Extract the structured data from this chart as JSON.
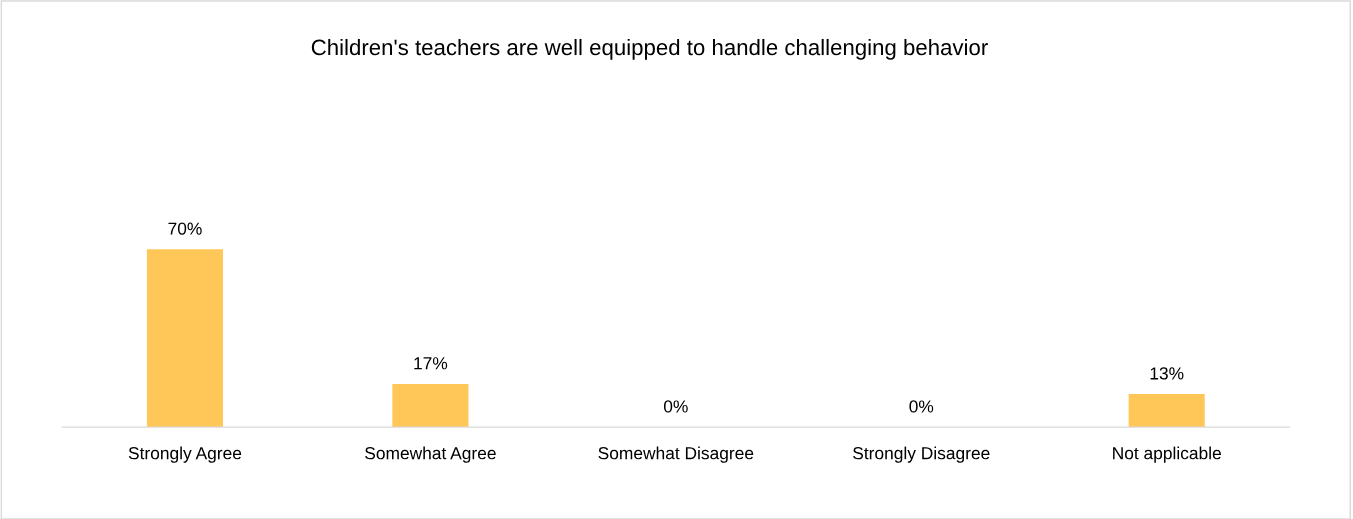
{
  "chart_data": {
    "type": "bar",
    "title": "Children's teachers are well equipped to handle challenging behavior",
    "categories": [
      "Strongly Agree",
      "Somewhat Agree",
      "Somewhat Disagree",
      "Strongly Disagree",
      "Not applicable"
    ],
    "values": [
      70,
      17,
      0,
      0,
      13
    ],
    "value_labels": [
      "70%",
      "17%",
      "0%",
      "0%",
      "13%"
    ],
    "color": "#ffc658"
  }
}
